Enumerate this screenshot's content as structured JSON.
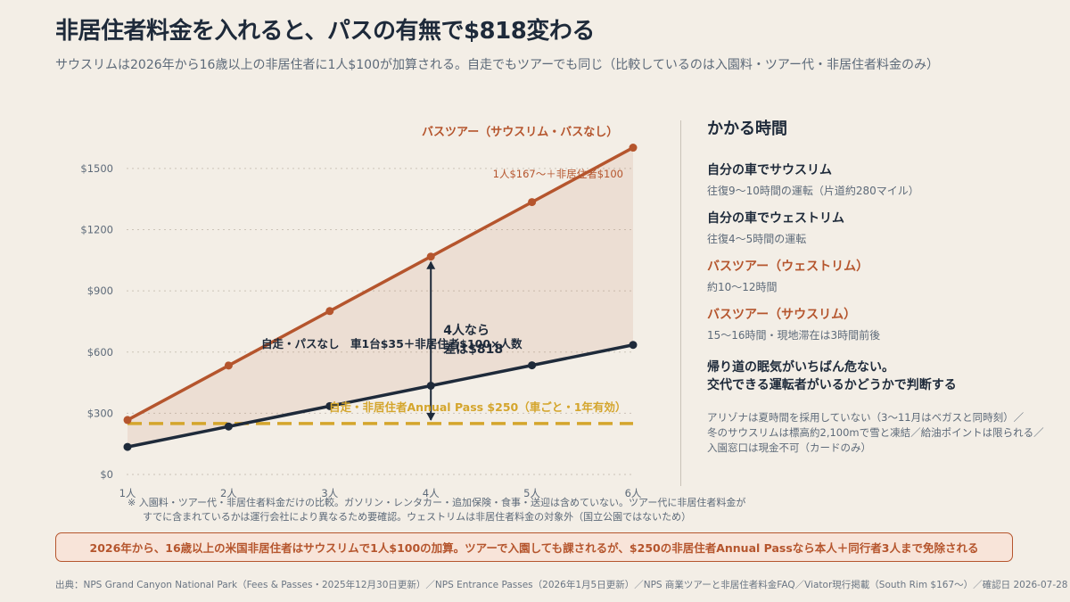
{
  "title": "非居住者料金を入れると、パスの有無で$818変わる",
  "subtitle": "サウスリムは2026年から16歳以上の非居住者に1人$100が加算される。自走でもツアーでも同じ（比較しているのは入園料・ツアー代・非居住者料金のみ）",
  "chart_data": {
    "type": "line",
    "categories": [
      "1人",
      "2人",
      "3人",
      "4人",
      "5人",
      "6人"
    ],
    "series": [
      {
        "name": "バスツアー（サウスリム・バスなし）",
        "values": [
          267,
          534,
          801,
          1068,
          1335,
          1602
        ],
        "color": "#b5552d"
      },
      {
        "name": "自走・パスなし　車1台$35＋非居住者$100×人数",
        "values": [
          135,
          235,
          335,
          435,
          535,
          635
        ],
        "color": "#1e2a3a"
      },
      {
        "name": "自走・非居住者Annual Pass $250（車ごと・1年有効）",
        "values": [
          250,
          250,
          250,
          250,
          250,
          250
        ],
        "color": "#d4a52c",
        "style": "dashed"
      }
    ],
    "yticks": [
      "$0",
      "$300",
      "$600",
      "$900",
      "$1200",
      "$1500"
    ],
    "ylim": [
      0,
      1600
    ],
    "annotations": {
      "tour_rate": "1人$167〜＋非居住者$100",
      "diff_line1": "4人なら",
      "diff_line2": "差は$818"
    },
    "grid": true
  },
  "side": {
    "heading": "かかる時間",
    "items": [
      {
        "label": "自分の車でサウスリム",
        "desc": "往復9〜10時間の運転（片道約280マイル）",
        "tone": "navy"
      },
      {
        "label": "自分の車でウェストリム",
        "desc": "往復4〜5時間の運転",
        "tone": "navy"
      },
      {
        "label": "バスツアー（ウェストリム）",
        "desc": "約10〜12時間",
        "tone": "orange"
      },
      {
        "label": "バスツアー（サウスリム）",
        "desc": "15〜16時間・現地滞在は3時間前後",
        "tone": "orange"
      }
    ],
    "warning_line1": "帰り道の眠気がいちばん危ない。",
    "warning_line2": "交代できる運転者がいるかどうかで判断する",
    "note_line1": "アリゾナは夏時間を採用していない（3〜11月はベガスと同時刻）／",
    "note_line2": "冬のサウスリムは標高約2,100mで雪と凍結／給油ポイントは限られる／",
    "note_line3": "入園窓口は現金不可（カードのみ）"
  },
  "footnote_line1": "※ 入園料・ツアー代・非居住者料金だけの比較。ガソリン・レンタカー・追加保険・食事・送迎は含めていない。ツアー代に非居住者料金が",
  "footnote_line2": "すでに含まれているかは運行会社により異なるため要確認。ウェストリムは非居住者料金の対象外（国立公園ではないため）",
  "banner": "2026年から、16歳以上の米国非居住者はサウスリムで1人$100の加算。ツアーで入園しても課されるが、$250の非居住者Annual Passなら本人＋同行者3人まで免除される",
  "source": "出典：NPS Grand Canyon National Park（Fees & Passes・2025年12月30日更新）／NPS Entrance Passes（2026年1月5日更新）／NPS 商業ツアーと非居住者料金FAQ／Viator現行掲載（South Rim $167〜）／確認日 2026-07-28"
}
